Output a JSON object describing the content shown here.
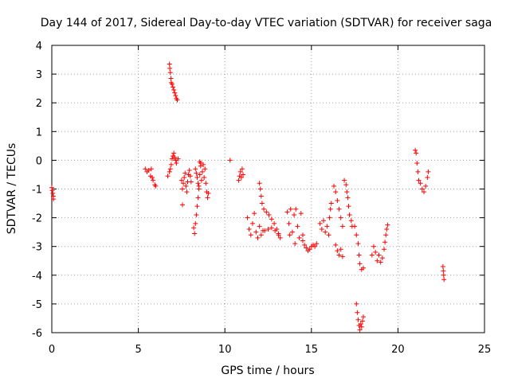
{
  "chart_data": {
    "type": "scatter",
    "title": "Day 144 of 2017, Sidereal Day-to-day VTEC variation (SDTVAR) for receiver saga",
    "xlabel": "GPS time / hours",
    "ylabel": "SDTVAR / TECUs",
    "xlim": [
      0,
      25
    ],
    "ylim": [
      -6,
      4
    ],
    "xticks": [
      0,
      5,
      10,
      15,
      20,
      25
    ],
    "yticks": [
      -6,
      -5,
      -4,
      -3,
      -2,
      -1,
      0,
      1,
      2,
      3,
      4
    ],
    "xtick_labels": [
      "0",
      "5",
      "10",
      "15",
      "20",
      "25"
    ],
    "ytick_labels": [
      "-6",
      "-5",
      "-4",
      "-3",
      "-2",
      "-1",
      "0",
      "1",
      "2",
      "3",
      "4"
    ],
    "grid": true,
    "marker": "+",
    "color": "#ff0000",
    "series": [
      {
        "name": "SDTVAR",
        "points": [
          [
            0.0,
            -0.95
          ],
          [
            0.03,
            -1.05
          ],
          [
            0.06,
            -1.15
          ],
          [
            0.09,
            -1.25
          ],
          [
            0.1,
            -1.35
          ],
          [
            5.4,
            -0.3
          ],
          [
            5.5,
            -0.4
          ],
          [
            5.6,
            -0.35
          ],
          [
            5.7,
            -0.55
          ],
          [
            5.75,
            -0.3
          ],
          [
            5.8,
            -0.6
          ],
          [
            5.85,
            -0.7
          ],
          [
            5.95,
            -0.85
          ],
          [
            6.0,
            -0.9
          ],
          [
            6.7,
            -0.55
          ],
          [
            6.8,
            -0.4
          ],
          [
            6.85,
            -0.3
          ],
          [
            6.9,
            -0.15
          ],
          [
            6.95,
            0.05
          ],
          [
            7.0,
            0.15
          ],
          [
            7.05,
            0.25
          ],
          [
            7.1,
            0.1
          ],
          [
            7.15,
            0.0
          ],
          [
            7.2,
            -0.1
          ],
          [
            7.3,
            0.05
          ],
          [
            6.8,
            3.35
          ],
          [
            6.82,
            3.2
          ],
          [
            6.85,
            3.05
          ],
          [
            6.88,
            2.85
          ],
          [
            6.9,
            2.7
          ],
          [
            6.95,
            2.65
          ],
          [
            7.0,
            2.55
          ],
          [
            7.05,
            2.45
          ],
          [
            7.1,
            2.35
          ],
          [
            7.15,
            2.25
          ],
          [
            7.2,
            2.15
          ],
          [
            7.25,
            2.1
          ],
          [
            7.5,
            -0.7
          ],
          [
            7.55,
            -1.0
          ],
          [
            7.6,
            -0.8
          ],
          [
            7.65,
            -0.6
          ],
          [
            7.7,
            -0.45
          ],
          [
            7.75,
            -0.9
          ],
          [
            7.8,
            -1.1
          ],
          [
            7.85,
            -0.75
          ],
          [
            7.9,
            -0.5
          ],
          [
            7.95,
            -0.35
          ],
          [
            8.0,
            -0.55
          ],
          [
            8.05,
            -0.75
          ],
          [
            7.55,
            -1.55
          ],
          [
            8.2,
            -2.35
          ],
          [
            8.25,
            -2.55
          ],
          [
            8.3,
            -2.2
          ],
          [
            8.35,
            -1.9
          ],
          [
            8.4,
            -1.6
          ],
          [
            8.45,
            -1.3
          ],
          [
            8.5,
            -0.9
          ],
          [
            8.55,
            -0.5
          ],
          [
            8.6,
            -0.2
          ],
          [
            8.65,
            -0.7
          ],
          [
            8.7,
            -0.4
          ],
          [
            8.75,
            -0.15
          ],
          [
            8.8,
            -0.6
          ],
          [
            8.85,
            -0.3
          ],
          [
            8.9,
            -0.8
          ],
          [
            8.95,
            -1.1
          ],
          [
            9.0,
            -1.3
          ],
          [
            9.05,
            -1.15
          ],
          [
            8.3,
            -0.3
          ],
          [
            8.35,
            -0.45
          ],
          [
            8.4,
            -0.6
          ],
          [
            8.45,
            -0.8
          ],
          [
            8.5,
            -1.0
          ],
          [
            8.55,
            -0.05
          ],
          [
            8.6,
            -0.1
          ],
          [
            10.3,
            0.0
          ],
          [
            10.8,
            -0.7
          ],
          [
            10.85,
            -0.55
          ],
          [
            10.9,
            -0.4
          ],
          [
            10.95,
            -0.6
          ],
          [
            11.0,
            -0.3
          ],
          [
            11.05,
            -0.5
          ],
          [
            11.3,
            -2.0
          ],
          [
            11.4,
            -2.4
          ],
          [
            11.5,
            -2.6
          ],
          [
            11.6,
            -2.2
          ],
          [
            11.7,
            -1.85
          ],
          [
            11.8,
            -2.5
          ],
          [
            11.9,
            -2.7
          ],
          [
            12.0,
            -2.3
          ],
          [
            12.1,
            -2.6
          ],
          [
            12.2,
            -2.45
          ],
          [
            12.0,
            -0.8
          ],
          [
            12.05,
            -1.0
          ],
          [
            12.1,
            -1.25
          ],
          [
            12.15,
            -1.5
          ],
          [
            12.25,
            -1.7
          ],
          [
            12.4,
            -1.8
          ],
          [
            12.55,
            -1.9
          ],
          [
            12.7,
            -2.05
          ],
          [
            12.85,
            -2.2
          ],
          [
            13.0,
            -2.4
          ],
          [
            13.1,
            -2.55
          ],
          [
            13.2,
            -2.7
          ],
          [
            12.3,
            -2.45
          ],
          [
            12.5,
            -2.4
          ],
          [
            12.7,
            -2.35
          ],
          [
            12.9,
            -2.45
          ],
          [
            13.1,
            -2.6
          ],
          [
            13.6,
            -1.8
          ],
          [
            13.7,
            -2.2
          ],
          [
            13.75,
            -2.6
          ],
          [
            13.8,
            -1.7
          ],
          [
            13.9,
            -2.5
          ],
          [
            14.0,
            -1.9
          ],
          [
            14.05,
            -2.9
          ],
          [
            14.1,
            -1.7
          ],
          [
            14.2,
            -2.3
          ],
          [
            14.3,
            -2.7
          ],
          [
            14.4,
            -1.85
          ],
          [
            14.5,
            -2.6
          ],
          [
            14.5,
            -2.8
          ],
          [
            14.6,
            -2.95
          ],
          [
            14.7,
            -3.05
          ],
          [
            14.8,
            -3.15
          ],
          [
            14.9,
            -3.1
          ],
          [
            15.0,
            -3.0
          ],
          [
            15.1,
            -2.95
          ],
          [
            15.2,
            -3.0
          ],
          [
            15.3,
            -2.9
          ],
          [
            15.5,
            -2.2
          ],
          [
            15.6,
            -2.4
          ],
          [
            15.7,
            -2.1
          ],
          [
            15.8,
            -2.5
          ],
          [
            15.9,
            -2.3
          ],
          [
            16.0,
            -2.6
          ],
          [
            16.05,
            -2.0
          ],
          [
            16.1,
            -1.7
          ],
          [
            16.15,
            -1.5
          ],
          [
            16.3,
            -0.9
          ],
          [
            16.4,
            -1.1
          ],
          [
            16.5,
            -1.4
          ],
          [
            16.6,
            -1.7
          ],
          [
            16.7,
            -2.0
          ],
          [
            16.8,
            -2.3
          ],
          [
            16.4,
            -2.95
          ],
          [
            16.5,
            -3.15
          ],
          [
            16.6,
            -3.3
          ],
          [
            16.7,
            -3.1
          ],
          [
            16.8,
            -3.35
          ],
          [
            16.9,
            -0.7
          ],
          [
            17.0,
            -0.85
          ],
          [
            17.05,
            -1.1
          ],
          [
            17.1,
            -1.3
          ],
          [
            17.15,
            -1.6
          ],
          [
            17.2,
            -1.9
          ],
          [
            17.3,
            -2.1
          ],
          [
            17.35,
            -2.3
          ],
          [
            17.5,
            -2.3
          ],
          [
            17.6,
            -2.6
          ],
          [
            17.7,
            -2.9
          ],
          [
            17.75,
            -3.3
          ],
          [
            17.8,
            -3.6
          ],
          [
            17.9,
            -3.8
          ],
          [
            18.0,
            -3.75
          ],
          [
            17.6,
            -5.0
          ],
          [
            17.65,
            -5.3
          ],
          [
            17.7,
            -5.55
          ],
          [
            17.75,
            -5.75
          ],
          [
            17.8,
            -5.9
          ],
          [
            17.85,
            -5.7
          ],
          [
            17.9,
            -5.8
          ],
          [
            17.95,
            -5.6
          ],
          [
            18.0,
            -5.45
          ],
          [
            18.5,
            -3.3
          ],
          [
            18.6,
            -3.0
          ],
          [
            18.7,
            -3.2
          ],
          [
            18.8,
            -3.5
          ],
          [
            18.9,
            -3.3
          ],
          [
            19.0,
            -3.55
          ],
          [
            19.1,
            -3.4
          ],
          [
            19.2,
            -3.1
          ],
          [
            19.25,
            -2.85
          ],
          [
            19.3,
            -2.6
          ],
          [
            19.35,
            -2.4
          ],
          [
            19.4,
            -2.25
          ],
          [
            21.0,
            0.35
          ],
          [
            21.05,
            0.25
          ],
          [
            21.1,
            -0.1
          ],
          [
            21.15,
            -0.4
          ],
          [
            21.2,
            -0.7
          ],
          [
            21.3,
            -0.8
          ],
          [
            21.4,
            -1.0
          ],
          [
            21.5,
            -1.1
          ],
          [
            21.6,
            -0.9
          ],
          [
            21.7,
            -0.6
          ],
          [
            21.75,
            -0.4
          ],
          [
            22.6,
            -3.7
          ],
          [
            22.62,
            -3.85
          ],
          [
            22.64,
            -4.0
          ],
          [
            22.66,
            -4.15
          ]
        ]
      }
    ]
  }
}
